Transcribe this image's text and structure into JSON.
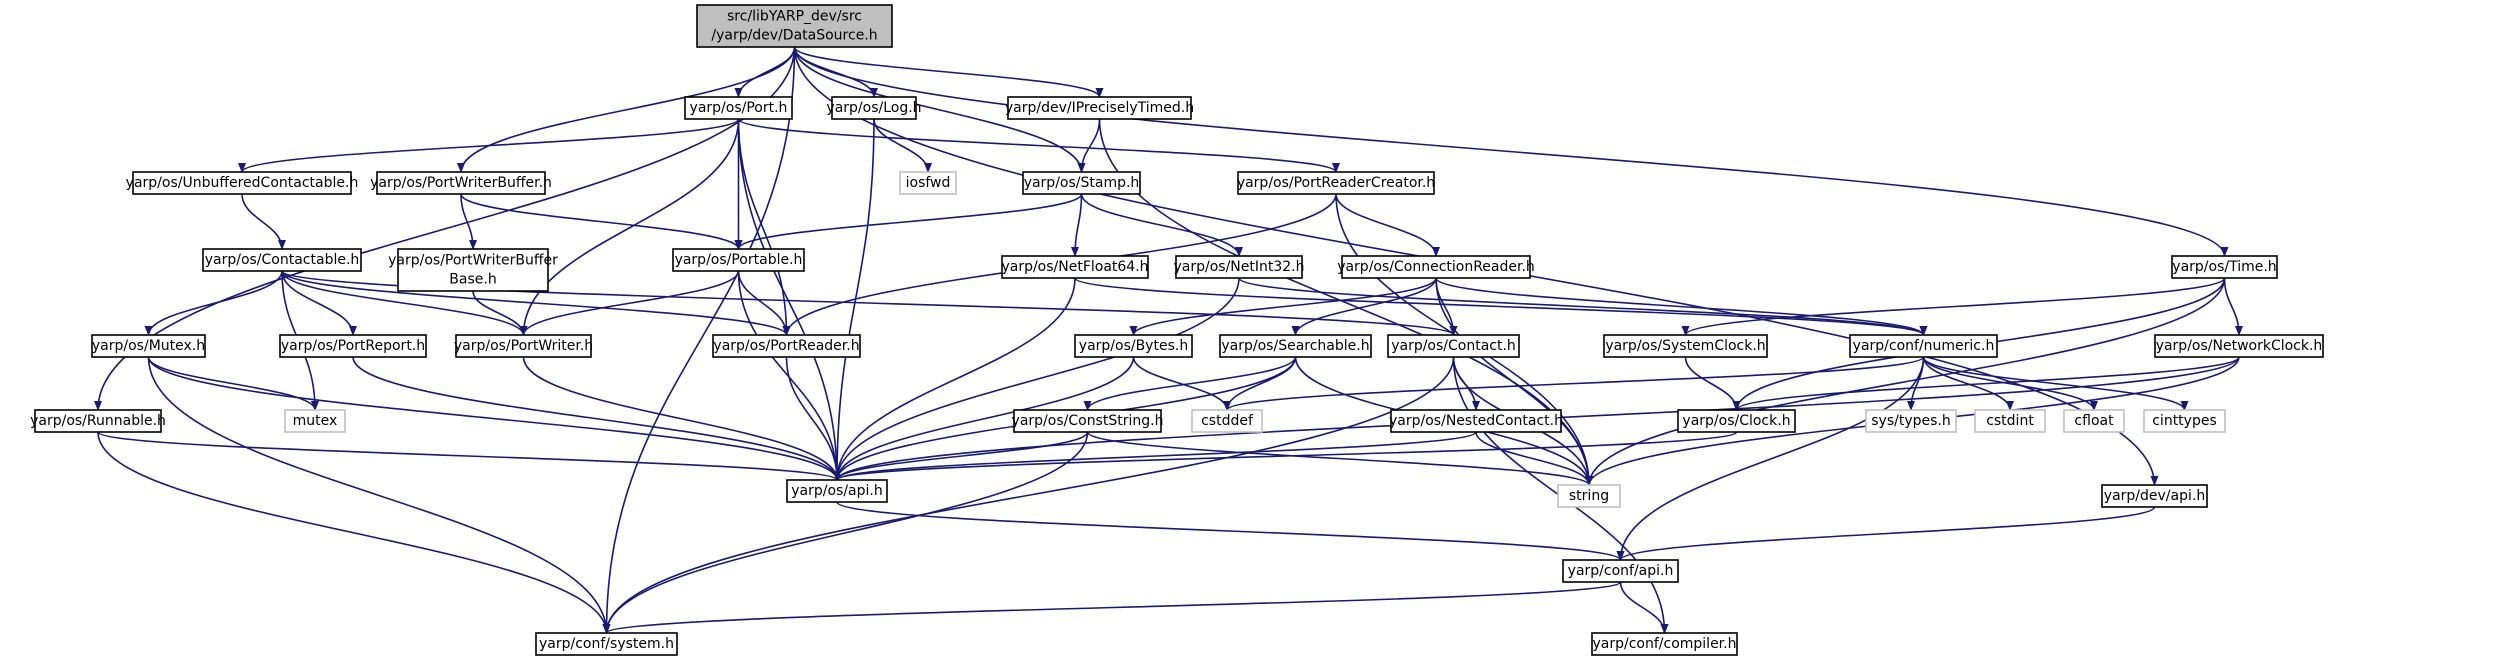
{
  "diagram_type": "include dependency graph",
  "colors": {
    "edge": "#191970",
    "node_border": "#000000",
    "root_fill": "#bfbfbf",
    "node_fill": "#ffffff",
    "external_border": "#bfbfbf"
  },
  "nodes": [
    {
      "id": "n_root",
      "kind": "root",
      "lines": [
        "src/libYARP_dev/src",
        "/yarp/dev/DataSource.h"
      ]
    },
    {
      "id": "n_port",
      "kind": "internal",
      "lines": [
        "yarp/os/Port.h"
      ]
    },
    {
      "id": "n_log",
      "kind": "internal",
      "lines": [
        "yarp/os/Log.h"
      ]
    },
    {
      "id": "n_iprecisely",
      "kind": "internal",
      "lines": [
        "yarp/dev/IPreciselyTimed.h"
      ]
    },
    {
      "id": "n_unbuffered",
      "kind": "internal",
      "lines": [
        "yarp/os/UnbufferedContactable.h"
      ]
    },
    {
      "id": "n_pwbuffer",
      "kind": "internal",
      "lines": [
        "yarp/os/PortWriterBuffer.h"
      ]
    },
    {
      "id": "n_iosfwd",
      "kind": "external",
      "lines": [
        "iosfwd"
      ]
    },
    {
      "id": "n_stamp",
      "kind": "internal",
      "lines": [
        "yarp/os/Stamp.h"
      ]
    },
    {
      "id": "n_prcreator",
      "kind": "internal",
      "lines": [
        "yarp/os/PortReaderCreator.h"
      ]
    },
    {
      "id": "n_contactable",
      "kind": "internal",
      "lines": [
        "yarp/os/Contactable.h"
      ]
    },
    {
      "id": "n_pwbufferbase",
      "kind": "internal",
      "lines": [
        "yarp/os/PortWriterBuffer",
        "Base.h"
      ]
    },
    {
      "id": "n_portable",
      "kind": "internal",
      "lines": [
        "yarp/os/Portable.h"
      ]
    },
    {
      "id": "n_netfloat64",
      "kind": "internal",
      "lines": [
        "yarp/os/NetFloat64.h"
      ]
    },
    {
      "id": "n_netint32",
      "kind": "internal",
      "lines": [
        "yarp/os/NetInt32.h"
      ]
    },
    {
      "id": "n_connreader",
      "kind": "internal",
      "lines": [
        "yarp/os/ConnectionReader.h"
      ]
    },
    {
      "id": "n_time",
      "kind": "internal",
      "lines": [
        "yarp/os/Time.h"
      ]
    },
    {
      "id": "n_mutex",
      "kind": "internal",
      "lines": [
        "yarp/os/Mutex.h"
      ]
    },
    {
      "id": "n_portreport",
      "kind": "internal",
      "lines": [
        "yarp/os/PortReport.h"
      ]
    },
    {
      "id": "n_portwriter",
      "kind": "internal",
      "lines": [
        "yarp/os/PortWriter.h"
      ]
    },
    {
      "id": "n_portreader",
      "kind": "internal",
      "lines": [
        "yarp/os/PortReader.h"
      ]
    },
    {
      "id": "n_bytes",
      "kind": "internal",
      "lines": [
        "yarp/os/Bytes.h"
      ]
    },
    {
      "id": "n_searchable",
      "kind": "internal",
      "lines": [
        "yarp/os/Searchable.h"
      ]
    },
    {
      "id": "n_contact",
      "kind": "internal",
      "lines": [
        "yarp/os/Contact.h"
      ]
    },
    {
      "id": "n_sysclock",
      "kind": "internal",
      "lines": [
        "yarp/os/SystemClock.h"
      ]
    },
    {
      "id": "n_numeric",
      "kind": "internal",
      "lines": [
        "yarp/conf/numeric.h"
      ]
    },
    {
      "id": "n_netclock",
      "kind": "internal",
      "lines": [
        "yarp/os/NetworkClock.h"
      ]
    },
    {
      "id": "n_mutex_ext",
      "kind": "external",
      "lines": [
        "mutex"
      ]
    },
    {
      "id": "n_cstddef",
      "kind": "external",
      "lines": [
        "cstddef"
      ]
    },
    {
      "id": "n_runnable",
      "kind": "internal",
      "lines": [
        "yarp/os/Runnable.h"
      ]
    },
    {
      "id": "n_conststring",
      "kind": "internal",
      "lines": [
        "yarp/os/ConstString.h"
      ]
    },
    {
      "id": "n_nested",
      "kind": "internal",
      "lines": [
        "yarp/os/NestedContact.h"
      ]
    },
    {
      "id": "n_systypes",
      "kind": "external",
      "lines": [
        "sys/types.h"
      ]
    },
    {
      "id": "n_cstdint",
      "kind": "external",
      "lines": [
        "cstdint"
      ]
    },
    {
      "id": "n_cfloat",
      "kind": "external",
      "lines": [
        "cfloat"
      ]
    },
    {
      "id": "n_cinttypes",
      "kind": "external",
      "lines": [
        "cinttypes"
      ]
    },
    {
      "id": "n_clock",
      "kind": "internal",
      "lines": [
        "yarp/os/Clock.h"
      ]
    },
    {
      "id": "n_osapi",
      "kind": "internal",
      "lines": [
        "yarp/os/api.h"
      ]
    },
    {
      "id": "n_string",
      "kind": "external",
      "lines": [
        "string"
      ]
    },
    {
      "id": "n_devapi",
      "kind": "internal",
      "lines": [
        "yarp/dev/api.h"
      ]
    },
    {
      "id": "n_confapi",
      "kind": "internal",
      "lines": [
        "yarp/conf/api.h"
      ]
    },
    {
      "id": "n_system",
      "kind": "internal",
      "lines": [
        "yarp/conf/system.h"
      ]
    },
    {
      "id": "n_compiler",
      "kind": "internal",
      "lines": [
        "yarp/conf/compiler.h"
      ]
    }
  ],
  "edges": [
    [
      "n_root",
      "n_port"
    ],
    [
      "n_root",
      "n_log"
    ],
    [
      "n_root",
      "n_iprecisely"
    ],
    [
      "n_root",
      "n_pwbuffer"
    ],
    [
      "n_root",
      "n_stamp"
    ],
    [
      "n_root",
      "n_time"
    ],
    [
      "n_root",
      "n_runnable"
    ],
    [
      "n_root",
      "n_system"
    ],
    [
      "n_root",
      "n_devapi"
    ],
    [
      "n_port",
      "n_unbuffered"
    ],
    [
      "n_port",
      "n_prcreator"
    ],
    [
      "n_port",
      "n_portable"
    ],
    [
      "n_port",
      "n_portwriter"
    ],
    [
      "n_port",
      "n_portreader"
    ],
    [
      "n_port",
      "n_osapi"
    ],
    [
      "n_log",
      "n_iosfwd"
    ],
    [
      "n_log",
      "n_osapi"
    ],
    [
      "n_iprecisely",
      "n_stamp"
    ],
    [
      "n_iprecisely",
      "n_string"
    ],
    [
      "n_unbuffered",
      "n_contactable"
    ],
    [
      "n_pwbuffer",
      "n_pwbufferbase"
    ],
    [
      "n_pwbuffer",
      "n_portable"
    ],
    [
      "n_stamp",
      "n_portable"
    ],
    [
      "n_stamp",
      "n_netfloat64"
    ],
    [
      "n_stamp",
      "n_netint32"
    ],
    [
      "n_prcreator",
      "n_portreader"
    ],
    [
      "n_prcreator",
      "n_connreader"
    ],
    [
      "n_prcreator",
      "n_string"
    ],
    [
      "n_contactable",
      "n_mutex"
    ],
    [
      "n_contactable",
      "n_portreport"
    ],
    [
      "n_contactable",
      "n_portwriter"
    ],
    [
      "n_contactable",
      "n_portreader"
    ],
    [
      "n_contactable",
      "n_contact"
    ],
    [
      "n_contactable",
      "n_mutex_ext"
    ],
    [
      "n_pwbufferbase",
      "n_portwriter"
    ],
    [
      "n_portable",
      "n_portwriter"
    ],
    [
      "n_portable",
      "n_portreader"
    ],
    [
      "n_portable",
      "n_osapi"
    ],
    [
      "n_netfloat64",
      "n_numeric"
    ],
    [
      "n_netfloat64",
      "n_osapi"
    ],
    [
      "n_netint32",
      "n_numeric"
    ],
    [
      "n_netint32",
      "n_osapi"
    ],
    [
      "n_connreader",
      "n_bytes"
    ],
    [
      "n_connreader",
      "n_searchable"
    ],
    [
      "n_connreader",
      "n_contact"
    ],
    [
      "n_connreader",
      "n_numeric"
    ],
    [
      "n_connreader",
      "n_string"
    ],
    [
      "n_time",
      "n_sysclock"
    ],
    [
      "n_time",
      "n_netclock"
    ],
    [
      "n_time",
      "n_clock"
    ],
    [
      "n_time",
      "n_string"
    ],
    [
      "n_mutex",
      "n_mutex_ext"
    ],
    [
      "n_mutex",
      "n_osapi"
    ],
    [
      "n_mutex",
      "n_system"
    ],
    [
      "n_portreport",
      "n_osapi"
    ],
    [
      "n_portwriter",
      "n_osapi"
    ],
    [
      "n_portreader",
      "n_osapi"
    ],
    [
      "n_bytes",
      "n_cstddef"
    ],
    [
      "n_bytes",
      "n_osapi"
    ],
    [
      "n_searchable",
      "n_conststring"
    ],
    [
      "n_searchable",
      "n_cstddef"
    ],
    [
      "n_searchable",
      "n_osapi"
    ],
    [
      "n_searchable",
      "n_string"
    ],
    [
      "n_contact",
      "n_nested"
    ],
    [
      "n_contact",
      "n_string"
    ],
    [
      "n_contact",
      "n_system"
    ],
    [
      "n_contact",
      "n_compiler"
    ],
    [
      "n_sysclock",
      "n_clock"
    ],
    [
      "n_numeric",
      "n_cstddef"
    ],
    [
      "n_numeric",
      "n_systypes"
    ],
    [
      "n_numeric",
      "n_cstdint"
    ],
    [
      "n_numeric",
      "n_cfloat"
    ],
    [
      "n_numeric",
      "n_cinttypes"
    ],
    [
      "n_numeric",
      "n_confapi"
    ],
    [
      "n_netclock",
      "n_clock"
    ],
    [
      "n_netclock",
      "n_string"
    ],
    [
      "n_netclock",
      "n_osapi"
    ],
    [
      "n_runnable",
      "n_osapi"
    ],
    [
      "n_runnable",
      "n_system"
    ],
    [
      "n_conststring",
      "n_osapi"
    ],
    [
      "n_conststring",
      "n_string"
    ],
    [
      "n_conststring",
      "n_system"
    ],
    [
      "n_nested",
      "n_osapi"
    ],
    [
      "n_nested",
      "n_string"
    ],
    [
      "n_clock",
      "n_osapi"
    ],
    [
      "n_osapi",
      "n_confapi"
    ],
    [
      "n_devapi",
      "n_confapi"
    ],
    [
      "n_confapi",
      "n_system"
    ],
    [
      "n_confapi",
      "n_compiler"
    ]
  ]
}
